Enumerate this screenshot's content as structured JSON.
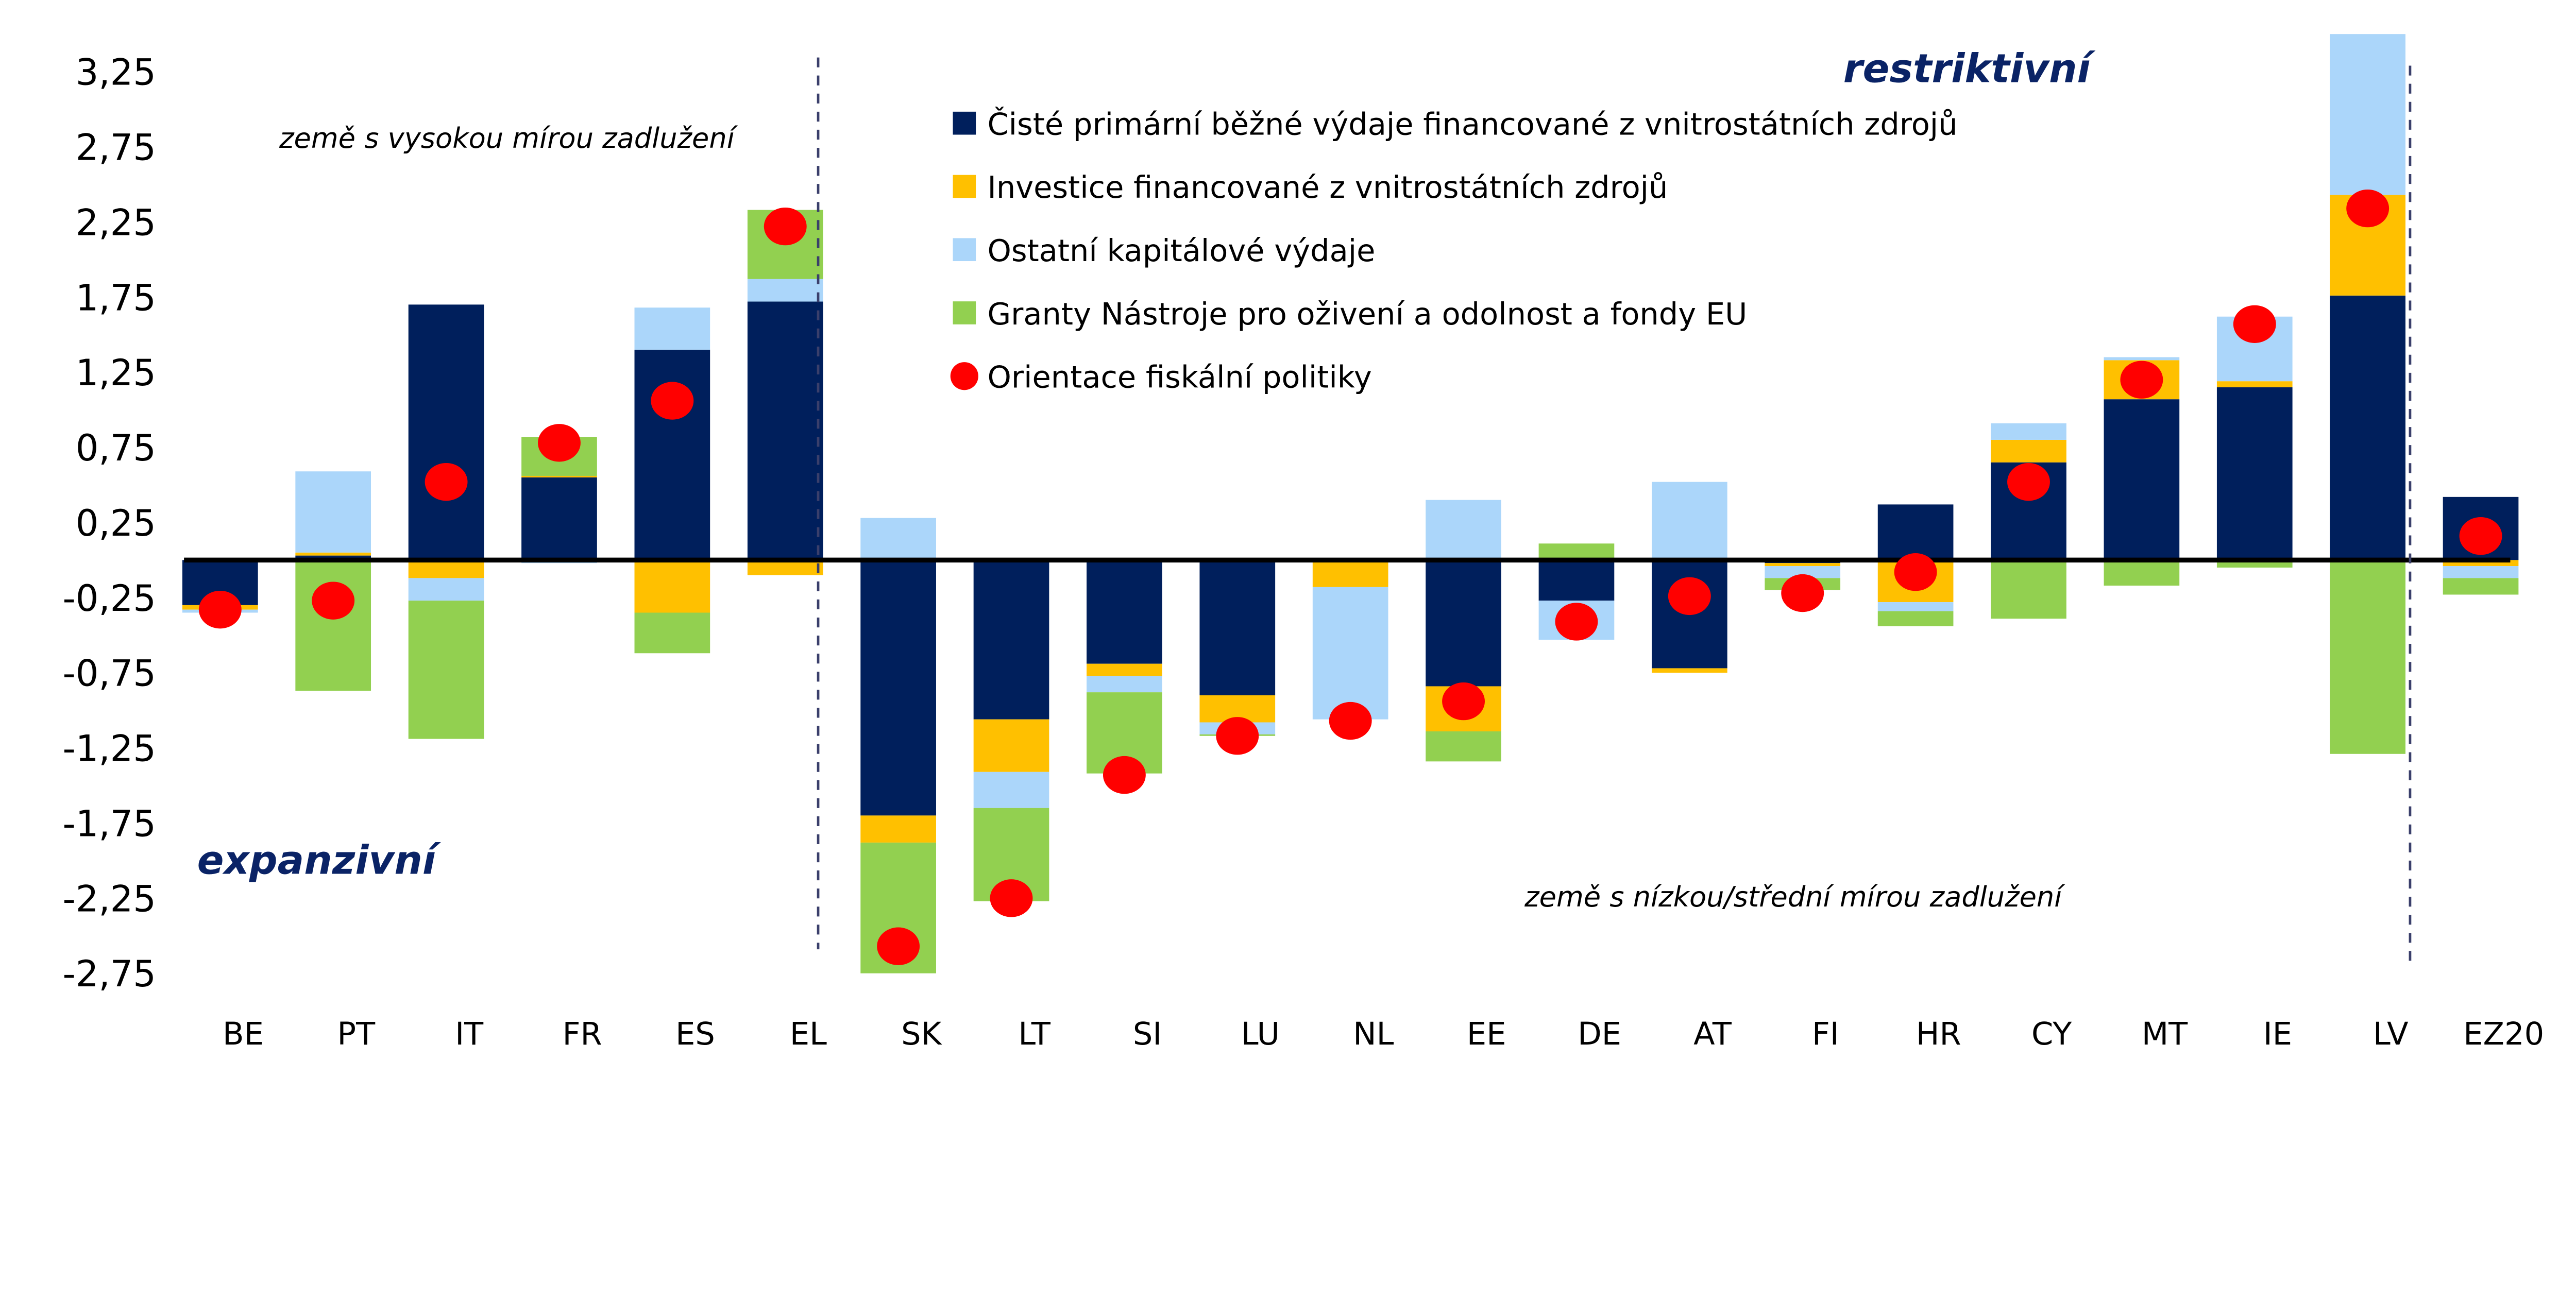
{
  "chart_data": {
    "type": "bar",
    "stacked": true,
    "categories": [
      "BE",
      "PT",
      "IT",
      "FR",
      "ES",
      "EL",
      "SK",
      "LT",
      "SI",
      "LU",
      "NL",
      "EE",
      "DE",
      "AT",
      "FI",
      "HR",
      "CY",
      "MT",
      "IE",
      "LV",
      "EZ20"
    ],
    "series": [
      {
        "name": "Čisté primární běžné výdaje financované z vnitrostátních zdrojů",
        "color": "#001f5c",
        "kind": "bar",
        "values": [
          -0.3,
          0.03,
          1.7,
          0.55,
          1.4,
          1.72,
          -1.7,
          -1.06,
          -0.69,
          -0.9,
          0,
          -0.84,
          -0.27,
          -0.72,
          -0.02,
          0.37,
          0.65,
          1.07,
          1.15,
          1.76,
          0.42
        ]
      },
      {
        "name": "Investice financované z vnitrostátních zdrojů",
        "color": "#ffc000",
        "kind": "bar",
        "values": [
          -0.03,
          0.02,
          -0.12,
          0.01,
          -0.35,
          -0.1,
          -0.18,
          -0.35,
          -0.08,
          -0.18,
          -0.18,
          -0.3,
          0,
          -0.03,
          -0.02,
          -0.28,
          0.15,
          0.26,
          0.04,
          0.67,
          -0.04
        ]
      },
      {
        "name": "Ostatní kapitálové výdaje",
        "color": "#abd6fa",
        "kind": "bar",
        "values": [
          -0.02,
          0.54,
          -0.15,
          -0.02,
          0.28,
          0.15,
          0.28,
          -0.24,
          -0.11,
          -0.08,
          -0.88,
          0.4,
          -0.26,
          0.52,
          -0.08,
          -0.06,
          0.11,
          0.02,
          0.43,
          1.07,
          -0.08
        ]
      },
      {
        "name": "Granty Nástroje pro oživení a odolnost a fondy EU",
        "color": "#92d050",
        "kind": "bar",
        "values": [
          0,
          -0.87,
          -0.92,
          0.26,
          -0.27,
          0.46,
          -0.87,
          -0.62,
          -0.54,
          -0.01,
          0,
          -0.2,
          0.11,
          0,
          -0.08,
          -0.1,
          -0.39,
          -0.17,
          -0.05,
          -1.29,
          -0.11
        ]
      },
      {
        "name": "Orientace fiskální politiky",
        "color": "#ff0000",
        "kind": "dot",
        "values": [
          -0.33,
          -0.27,
          0.52,
          0.78,
          1.06,
          2.22,
          -2.57,
          -2.25,
          -1.43,
          -1.17,
          -1.07,
          -0.94,
          -0.41,
          -0.24,
          -0.22,
          -0.08,
          0.52,
          1.2,
          1.57,
          2.34,
          0.16
        ]
      }
    ],
    "yticks": [
      "3,25",
      "2,75",
      "2,25",
      "1,75",
      "1,25",
      "0,75",
      "0,25",
      "-0,25",
      "-0,75",
      "-1,25",
      "-1,75",
      "-2,25",
      "-2,75"
    ],
    "ylim": [
      -2.9,
      3.5
    ],
    "grid": false,
    "legend_position": "top-center",
    "annotations": {
      "high_debt": "země s vysokou mírou zadlužení",
      "low_debt": "země s nízkou/střední mírou zadlužení",
      "restrictive": "restriktivní",
      "expansive": "expanzivní"
    }
  }
}
